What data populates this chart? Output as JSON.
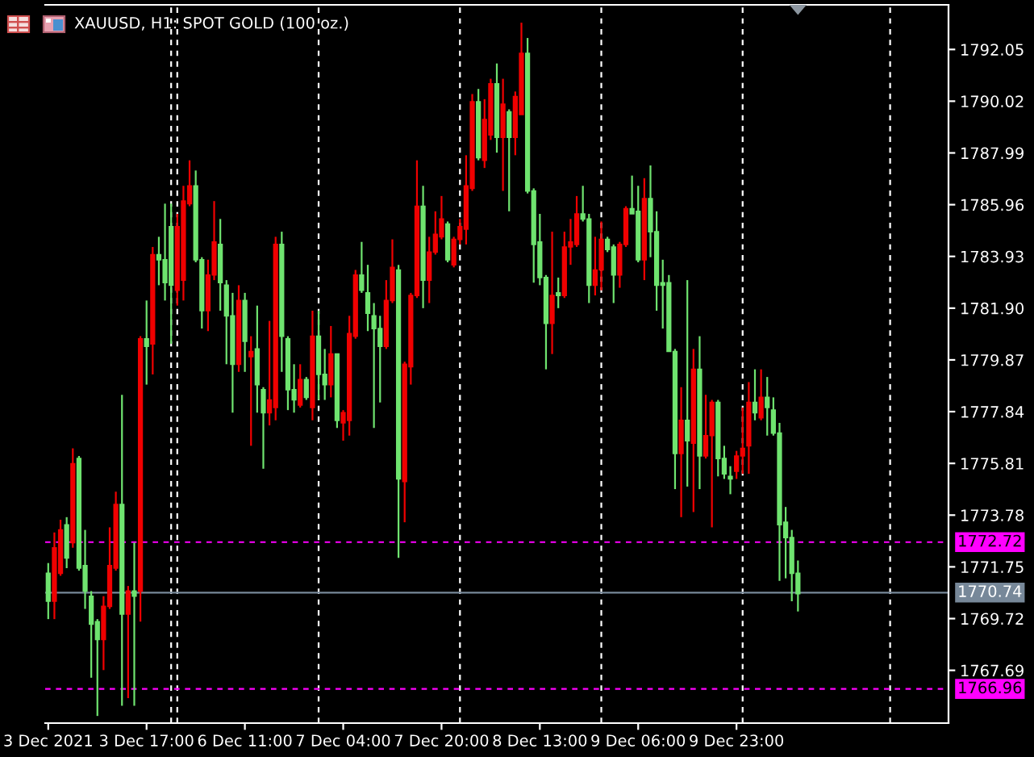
{
  "chart_data": {
    "type": "candlestick",
    "title": "XAUUSD, H1: SPOT GOLD (100 oz.)",
    "categories": [
      "3 Dec 2021",
      null,
      null,
      null,
      null,
      null,
      null,
      null,
      null,
      null,
      null,
      null,
      null,
      null,
      null,
      null,
      "3 Dec 17:00",
      null,
      null,
      null,
      null,
      null,
      null,
      null,
      null,
      null,
      null,
      null,
      null,
      null,
      null,
      null,
      "6 Dec 11:00",
      null,
      null,
      null,
      null,
      null,
      null,
      null,
      null,
      null,
      null,
      null,
      null,
      null,
      null,
      null,
      "7 Dec 04:00",
      null,
      null,
      null,
      null,
      null,
      null,
      null,
      null,
      null,
      null,
      null,
      null,
      null,
      null,
      null,
      "7 Dec 20:00",
      null,
      null,
      null,
      null,
      null,
      null,
      null,
      null,
      null,
      null,
      null,
      null,
      null,
      null,
      null,
      "8 Dec 13:00",
      null,
      null,
      null,
      null,
      null,
      null,
      null,
      null,
      null,
      null,
      null,
      null,
      null,
      null,
      null,
      "9 Dec 06:00",
      null,
      null,
      null,
      null,
      null,
      null,
      null,
      null,
      null,
      null,
      null,
      null,
      null,
      null,
      null,
      "9 Dec 23:00",
      null,
      null,
      null,
      null,
      null,
      null,
      null,
      null,
      null,
      null,
      null,
      null,
      null,
      null,
      null,
      null,
      null,
      null,
      null,
      null,
      null,
      null,
      null,
      null,
      null,
      null,
      null,
      null,
      null,
      null,
      null,
      null,
      null,
      null
    ],
    "ohlc": [
      [
        1771.5,
        1771.9,
        1769.7,
        1770.4
      ],
      [
        1770.4,
        1773.1,
        1769.7,
        1772.5
      ],
      [
        1771.5,
        1773.6,
        1771.4,
        1773.2
      ],
      [
        1773.4,
        1773.7,
        1771.7,
        1772.1
      ],
      [
        1772.7,
        1776.4,
        1772.5,
        1775.8
      ],
      [
        1776.0,
        1776.1,
        1771.6,
        1771.7
      ],
      [
        1771.8,
        1773.2,
        1770.1,
        1770.8
      ],
      [
        1770.6,
        1770.8,
        1767.4,
        1769.5
      ],
      [
        1769.6,
        1769.7,
        1765.9,
        1768.9
      ],
      [
        1768.9,
        1770.6,
        1767.7,
        1770.2
      ],
      [
        1770.2,
        1773.3,
        1770.1,
        1771.8
      ],
      [
        1771.7,
        1774.7,
        1771.6,
        1774.2
      ],
      [
        1774.2,
        1778.5,
        1766.3,
        1769.9
      ],
      [
        1769.9,
        1771.0,
        1766.6,
        1770.8
      ],
      [
        1770.8,
        1772.7,
        1766.3,
        1770.6
      ],
      [
        1770.8,
        1780.8,
        1769.6,
        1780.7
      ],
      [
        1780.7,
        1782.2,
        1778.9,
        1780.4
      ],
      [
        1780.5,
        1784.3,
        1779.3,
        1784.0
      ],
      [
        1784.0,
        1784.7,
        1782.8,
        1783.8
      ],
      [
        1783.8,
        1786.0,
        1782.2,
        1782.9
      ],
      [
        1785.1,
        1786.0,
        1780.5,
        1782.8
      ],
      [
        1782.6,
        1785.6,
        1782.0,
        1785.1
      ],
      [
        1783.0,
        1786.7,
        1782.2,
        1786.1
      ],
      [
        1786.0,
        1787.7,
        1785.9,
        1786.7
      ],
      [
        1786.7,
        1787.3,
        1783.7,
        1783.8
      ],
      [
        1783.8,
        1783.9,
        1781.1,
        1781.8
      ],
      [
        1781.8,
        1783.8,
        1781.0,
        1783.2
      ],
      [
        1783.2,
        1786.1,
        1783.0,
        1784.5
      ],
      [
        1784.4,
        1785.4,
        1781.8,
        1782.9
      ],
      [
        1782.8,
        1783.0,
        1779.7,
        1781.6
      ],
      [
        1781.6,
        1782.5,
        1777.8,
        1779.7
      ],
      [
        1779.7,
        1782.8,
        1779.4,
        1782.2
      ],
      [
        1782.2,
        1782.5,
        1779.4,
        1780.6
      ],
      [
        1780.0,
        1780.8,
        1776.5,
        1780.2
      ],
      [
        1780.3,
        1782.0,
        1777.8,
        1778.9
      ],
      [
        1778.7,
        1778.8,
        1775.6,
        1777.8
      ],
      [
        1777.8,
        1781.4,
        1777.3,
        1778.3
      ],
      [
        1778.0,
        1784.7,
        1777.5,
        1784.4
      ],
      [
        1784.4,
        1784.9,
        1779.4,
        1780.8
      ],
      [
        1780.7,
        1780.8,
        1777.9,
        1778.7
      ],
      [
        1778.7,
        1779.7,
        1777.8,
        1778.3
      ],
      [
        1778.1,
        1779.7,
        1778.0,
        1779.1
      ],
      [
        1779.1,
        1779.2,
        1778.3,
        1778.4
      ],
      [
        1778.0,
        1781.8,
        1777.5,
        1780.8
      ],
      [
        1780.8,
        1781.8,
        1778.3,
        1779.3
      ],
      [
        1779.3,
        1780.3,
        1778.3,
        1778.9
      ],
      [
        1778.9,
        1781.2,
        1778.4,
        1780.1
      ],
      [
        1780.1,
        1780.1,
        1777.2,
        1777.5
      ],
      [
        1777.4,
        1777.9,
        1776.7,
        1777.8
      ],
      [
        1777.5,
        1781.6,
        1776.9,
        1780.9
      ],
      [
        1780.8,
        1783.4,
        1780.7,
        1783.2
      ],
      [
        1783.2,
        1784.5,
        1782.5,
        1782.6
      ],
      [
        1782.5,
        1783.6,
        1781.0,
        1781.7
      ],
      [
        1781.6,
        1782.1,
        1777.2,
        1781.1
      ],
      [
        1781.1,
        1781.6,
        1778.2,
        1780.4
      ],
      [
        1780.4,
        1783.0,
        1780.3,
        1782.2
      ],
      [
        1782.2,
        1784.6,
        1782.1,
        1783.5
      ],
      [
        1783.4,
        1783.6,
        1772.1,
        1775.2
      ],
      [
        1775.1,
        1779.8,
        1773.5,
        1779.7
      ],
      [
        1779.6,
        1782.5,
        1778.9,
        1782.4
      ],
      [
        1782.4,
        1787.7,
        1782.3,
        1785.9
      ],
      [
        1785.9,
        1786.7,
        1781.9,
        1783.0
      ],
      [
        1783.0,
        1784.7,
        1782.1,
        1784.1
      ],
      [
        1784.1,
        1785.7,
        1784.0,
        1784.8
      ],
      [
        1784.7,
        1786.3,
        1784.6,
        1785.4
      ],
      [
        1785.2,
        1785.3,
        1783.7,
        1783.8
      ],
      [
        1783.6,
        1784.7,
        1783.5,
        1784.6
      ],
      [
        1784.6,
        1785.4,
        1784.4,
        1785.1
      ],
      [
        1785.0,
        1787.9,
        1784.4,
        1786.7
      ],
      [
        1786.6,
        1790.3,
        1786.5,
        1790.0
      ],
      [
        1790.0,
        1790.5,
        1787.7,
        1787.8
      ],
      [
        1787.7,
        1790.1,
        1787.4,
        1789.3
      ],
      [
        1788.7,
        1790.9,
        1788.5,
        1790.7
      ],
      [
        1790.7,
        1791.5,
        1788.0,
        1788.6
      ],
      [
        1788.6,
        1790.9,
        1786.5,
        1789.9
      ],
      [
        1789.6,
        1789.7,
        1785.7,
        1788.6
      ],
      [
        1788.6,
        1790.4,
        1787.9,
        1790.2
      ],
      [
        1789.5,
        1793.1,
        1789.5,
        1791.9
      ],
      [
        1791.9,
        1792.5,
        1786.4,
        1786.5
      ],
      [
        1786.5,
        1786.6,
        1782.9,
        1784.4
      ],
      [
        1784.5,
        1785.6,
        1782.8,
        1783.1
      ],
      [
        1783.1,
        1783.2,
        1779.5,
        1781.3
      ],
      [
        1781.3,
        1784.9,
        1780.1,
        1782.4
      ],
      [
        1782.5,
        1783.1,
        1781.9,
        1782.4
      ],
      [
        1782.4,
        1784.9,
        1782.3,
        1784.3
      ],
      [
        1784.3,
        1785.4,
        1783.6,
        1784.5
      ],
      [
        1784.4,
        1786.3,
        1784.3,
        1785.6
      ],
      [
        1785.6,
        1786.7,
        1785.3,
        1785.4
      ],
      [
        1785.4,
        1785.6,
        1782.1,
        1782.8
      ],
      [
        1782.8,
        1784.7,
        1782.4,
        1783.4
      ],
      [
        1783.4,
        1785.3,
        1782.6,
        1784.6
      ],
      [
        1784.6,
        1784.7,
        1784.1,
        1784.2
      ],
      [
        1784.3,
        1784.4,
        1782.1,
        1783.2
      ],
      [
        1783.2,
        1784.5,
        1782.7,
        1784.4
      ],
      [
        1784.4,
        1785.9,
        1784.3,
        1785.8
      ],
      [
        1785.8,
        1787.1,
        1785.6,
        1785.6
      ],
      [
        1785.7,
        1786.7,
        1783.7,
        1783.8
      ],
      [
        1783.8,
        1787.0,
        1783.0,
        1786.2
      ],
      [
        1786.2,
        1787.5,
        1783.9,
        1784.9
      ],
      [
        1784.9,
        1785.7,
        1781.8,
        1782.8
      ],
      [
        1782.9,
        1783.8,
        1781.1,
        1782.8
      ],
      [
        1782.9,
        1783.2,
        1780.2,
        1780.2
      ],
      [
        1780.2,
        1780.3,
        1774.8,
        1776.2
      ],
      [
        1776.2,
        1778.8,
        1773.7,
        1777.5
      ],
      [
        1777.5,
        1783.0,
        1774.9,
        1776.7
      ],
      [
        1776.6,
        1780.3,
        1773.9,
        1779.5
      ],
      [
        1779.5,
        1780.8,
        1774.8,
        1776.1
      ],
      [
        1776.1,
        1778.5,
        1776.0,
        1776.9
      ],
      [
        1776.9,
        1778.3,
        1773.3,
        1778.2
      ],
      [
        1778.2,
        1778.3,
        1775.3,
        1776.0
      ],
      [
        1776.0,
        1776.5,
        1775.2,
        1775.4
      ],
      [
        1775.3,
        1775.7,
        1774.6,
        1775.2
      ],
      [
        1775.5,
        1776.3,
        1775.2,
        1776.1
      ],
      [
        1776.1,
        1778.0,
        1775.4,
        1776.4
      ],
      [
        1776.5,
        1779.0,
        1775.4,
        1778.2
      ],
      [
        1778.2,
        1779.5,
        1777.5,
        1777.8
      ],
      [
        1777.6,
        1779.5,
        1777.5,
        1778.4
      ],
      [
        1778.4,
        1779.2,
        1776.9,
        1778.0
      ],
      [
        1777.9,
        1778.4,
        1776.9,
        1777.0
      ],
      [
        1777.0,
        1777.4,
        1771.2,
        1773.4
      ],
      [
        1773.5,
        1774.1,
        1771.3,
        1772.9
      ],
      [
        1772.9,
        1773.2,
        1770.4,
        1771.5
      ],
      [
        1771.5,
        1772.0,
        1770.0,
        1770.7
      ],
      null,
      null,
      null,
      null,
      null,
      null,
      null,
      null,
      null,
      null,
      null,
      null,
      null,
      null,
      null,
      null,
      null,
      null,
      null,
      null,
      null,
      null,
      null,
      null
    ],
    "colors": [
      "#6fe36f",
      "#f00000",
      "#f00000",
      "#6fe36f",
      "#f00000",
      "#6fe36f",
      "#6fe36f",
      "#6fe36f",
      "#6fe36f",
      "#f00000",
      "#f00000",
      "#f00000",
      "#6fe36f",
      "#f00000",
      "#6fe36f",
      "#f00000",
      "#6fe36f",
      "#f00000",
      "#6fe36f",
      "#6fe36f",
      "#6fe36f",
      "#f00000",
      "#f00000",
      "#f00000",
      "#6fe36f",
      "#6fe36f",
      "#f00000",
      "#f00000",
      "#6fe36f",
      "#6fe36f",
      "#6fe36f",
      "#f00000",
      "#6fe36f",
      "#f00000",
      "#6fe36f",
      "#6fe36f",
      "#f00000",
      "#f00000",
      "#6fe36f",
      "#6fe36f",
      "#6fe36f",
      "#f00000",
      "#6fe36f",
      "#f00000",
      "#6fe36f",
      "#6fe36f",
      "#f00000",
      "#6fe36f",
      "#f00000",
      "#f00000",
      "#f00000",
      "#6fe36f",
      "#6fe36f",
      "#6fe36f",
      "#6fe36f",
      "#f00000",
      "#f00000",
      "#6fe36f",
      "#f00000",
      "#f00000",
      "#f00000",
      "#6fe36f",
      "#f00000",
      "#f00000",
      "#f00000",
      "#6fe36f",
      "#f00000",
      "#f00000",
      "#f00000",
      "#f00000",
      "#6fe36f",
      "#f00000",
      "#f00000",
      "#6fe36f",
      "#f00000",
      "#6fe36f",
      "#f00000",
      "#f00000",
      "#6fe36f",
      "#6fe36f",
      "#6fe36f",
      "#6fe36f",
      "#f00000",
      "#6fe36f",
      "#f00000",
      "#f00000",
      "#f00000",
      "#6fe36f",
      "#6fe36f",
      "#f00000",
      "#f00000",
      "#6fe36f",
      "#6fe36f",
      "#f00000",
      "#f00000",
      "#6fe36f",
      "#6fe36f",
      "#f00000",
      "#6fe36f",
      "#6fe36f",
      "#6fe36f",
      "#6fe36f",
      "#6fe36f",
      "#f00000",
      "#6fe36f",
      "#f00000",
      "#6fe36f",
      "#f00000",
      "#f00000",
      "#6fe36f",
      "#6fe36f",
      "#6fe36f",
      "#f00000",
      "#f00000",
      "#f00000",
      "#6fe36f",
      "#f00000",
      "#6fe36f",
      "#6fe36f",
      "#6fe36f",
      "#6fe36f",
      "#6fe36f",
      "#6fe36f",
      null,
      null,
      null,
      null,
      null,
      null,
      null,
      null,
      null,
      null,
      null,
      null,
      null,
      null,
      null,
      null,
      null,
      null,
      null,
      null,
      null,
      null,
      null,
      null
    ],
    "ylim": [
      1765.62,
      1793.8
    ],
    "yticks": [
      1792.05,
      1790.02,
      1787.99,
      1785.96,
      1783.93,
      {
        "value": 1781.9,
        "label": "1781.90"
      },
      1779.87,
      1777.84,
      1775.81,
      1773.78,
      1771.75,
      1769.72,
      1767.69
    ],
    "ref_lines": [
      {
        "axis": "y",
        "value": 1772.72,
        "label": "1772.72",
        "color": "#ff00ff",
        "line_style": "dashed"
      },
      {
        "axis": "y",
        "value": 1770.74,
        "label": "1770.74",
        "color": "#778899",
        "line_style": "solid"
      },
      {
        "axis": "y",
        "value": 1766.96,
        "label": "1766.96",
        "color": "#ff00ff",
        "line_style": "dashed"
      }
    ]
  }
}
